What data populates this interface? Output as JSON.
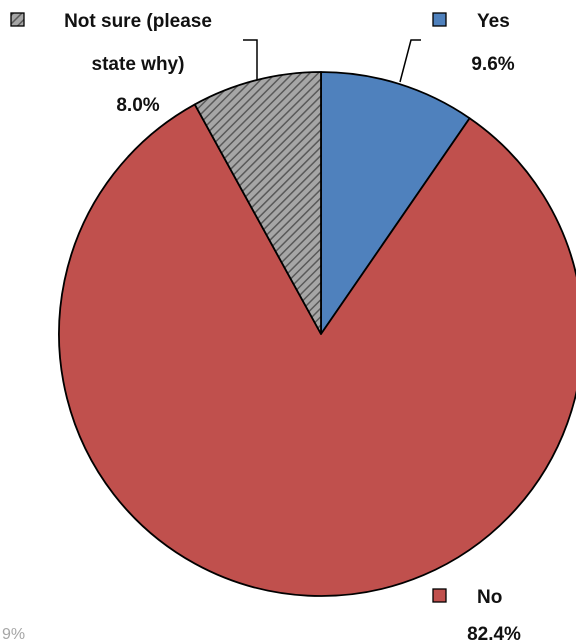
{
  "chart_data": {
    "type": "pie",
    "slices": [
      {
        "label": "Yes",
        "value": 9.6,
        "value_label": "9.6%",
        "color": "#4f81bd",
        "pattern": "solid"
      },
      {
        "label": "No",
        "value": 82.4,
        "value_label": "82.4%",
        "color": "#c0504d",
        "pattern": "solid"
      },
      {
        "label": "Not sure (please state why)",
        "label_lines": [
          "Not sure (please",
          "state why)"
        ],
        "value": 8.0,
        "value_label": "8.0%",
        "color": "#7f7f7f",
        "pattern": "diagonal-stripes"
      }
    ],
    "start_angle": "12 o'clock",
    "direction": "clockwise",
    "legend_markers": true,
    "clipped_text": "9%"
  }
}
